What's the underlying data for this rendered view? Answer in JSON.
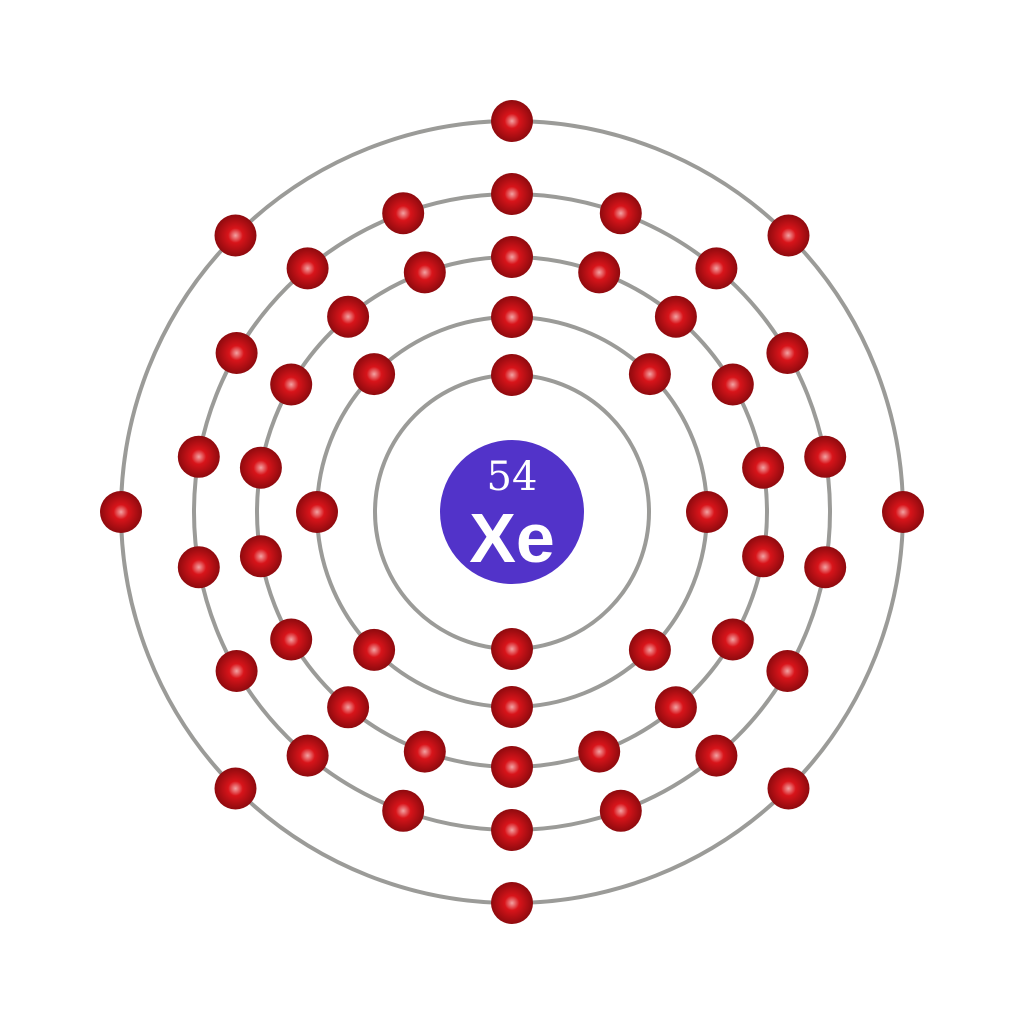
{
  "atom": {
    "atomic_number": "54",
    "symbol": "Xe",
    "electron_configuration": [
      2,
      8,
      18,
      18,
      8
    ]
  },
  "colors": {
    "background": "#ffffff",
    "nucleus": "#5233c9",
    "nucleus_text": "#ffffff",
    "shell_ring": "#9b9b98",
    "electron": "#d8141a",
    "electron_highlight": "#f3a2a2",
    "electron_shadow": "#8e0a0e"
  },
  "icons": {
    "nucleus": "nucleus-icon",
    "electron": "electron-icon"
  }
}
